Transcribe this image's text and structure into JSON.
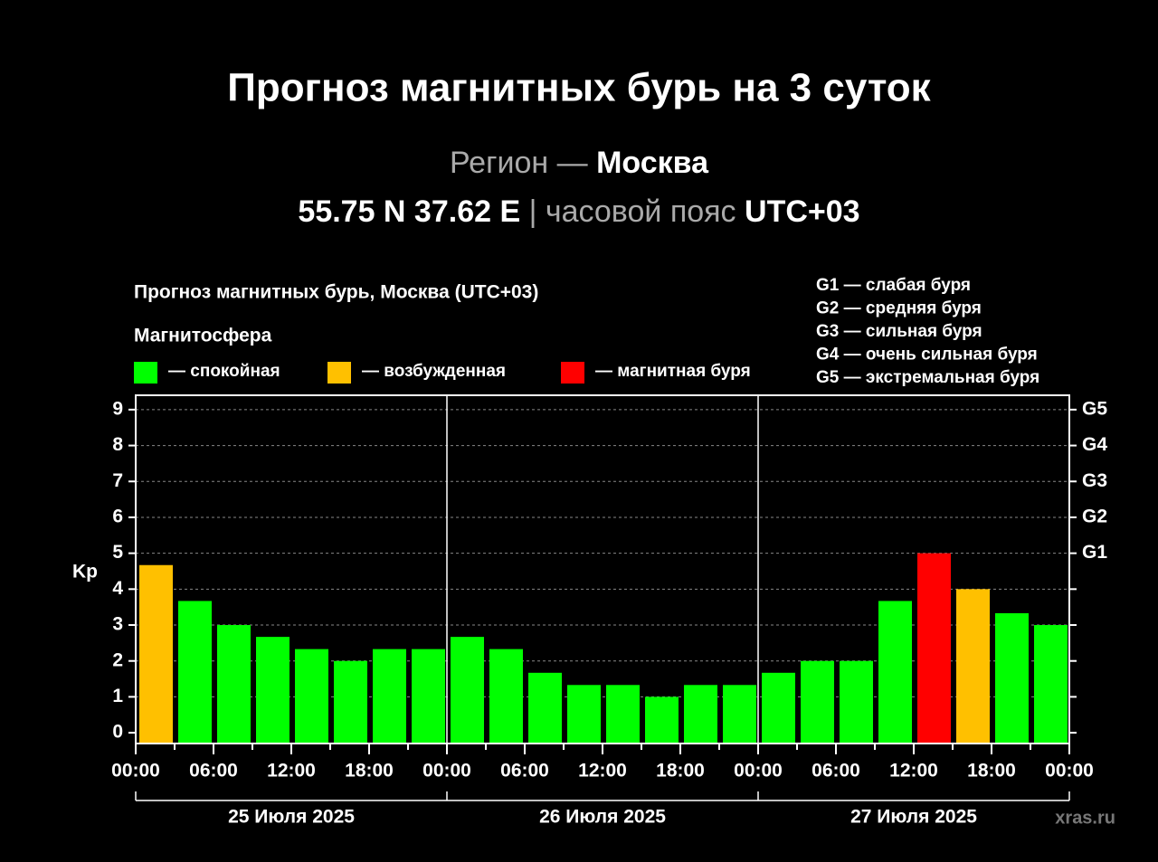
{
  "header": {
    "title": "Прогноз магнитных бурь на 3 суток",
    "region_label": "Регион —",
    "region": "Москва",
    "coords": "55.75 N 37.62 E",
    "tz_label": "| часовой пояс",
    "tz": "UTC+03"
  },
  "chart_data": {
    "type": "bar",
    "title": "Прогноз магнитных бурь, Москва (UTC+03)",
    "legend_title": "Магнитосфера",
    "legend": [
      {
        "name": "— спокойная",
        "color": "#00ff00"
      },
      {
        "name": "— возбужденная",
        "color": "#ffc000"
      },
      {
        "name": "— магнитная буря",
        "color": "#ff0000"
      }
    ],
    "g_legend": [
      "G1 — слабая буря",
      "G2 — средняя буря",
      "G3 — сильная буря",
      "G4 — очень сильная буря",
      "G5 — экстремальная буря"
    ],
    "y_label": "Kp",
    "categories": [
      null,
      null,
      null,
      null,
      null,
      null,
      null,
      null,
      null,
      null,
      null,
      null,
      null,
      null,
      null,
      null,
      null,
      null,
      null,
      null,
      null,
      null,
      null,
      null
    ],
    "values": [
      4.67,
      3.67,
      3,
      2.67,
      2.33,
      2,
      2.33,
      2.33,
      2.67,
      2.33,
      1.67,
      1.33,
      1.33,
      1,
      1.33,
      1.33,
      1.67,
      2,
      2,
      3.67,
      5,
      4,
      3.33,
      3
    ],
    "colors": [
      "#ffc000",
      "#00ff00",
      "#00ff00",
      "#00ff00",
      "#00ff00",
      "#00ff00",
      "#00ff00",
      "#00ff00",
      "#00ff00",
      "#00ff00",
      "#00ff00",
      "#00ff00",
      "#00ff00",
      "#00ff00",
      "#00ff00",
      "#00ff00",
      "#00ff00",
      "#00ff00",
      "#00ff00",
      "#00ff00",
      "#ff0000",
      "#ffc000",
      "#00ff00",
      "#00ff00"
    ],
    "ylim": [
      -0.3,
      9.4
    ],
    "yticks": [
      0,
      1,
      2,
      3,
      4,
      5,
      6,
      7,
      8,
      9
    ],
    "y2ticks": [
      {
        "value": 5,
        "label": "G1"
      },
      {
        "value": 6,
        "label": "G2"
      },
      {
        "value": 7,
        "label": "G3"
      },
      {
        "value": 8,
        "label": "G4"
      },
      {
        "value": 9,
        "label": "G5"
      }
    ],
    "xlim": [
      0,
      72
    ],
    "xticks": [
      {
        "value": 0,
        "label": "00:00"
      },
      {
        "value": 6,
        "label": "06:00"
      },
      {
        "value": 12,
        "label": "12:00"
      },
      {
        "value": 18,
        "label": "18:00"
      },
      {
        "value": 24,
        "label": "00:00"
      },
      {
        "value": 30,
        "label": "06:00"
      },
      {
        "value": 36,
        "label": "12:00"
      },
      {
        "value": 42,
        "label": "18:00"
      },
      {
        "value": 48,
        "label": "00:00"
      },
      {
        "value": 54,
        "label": "06:00"
      },
      {
        "value": 60,
        "label": "12:00"
      },
      {
        "value": 66,
        "label": "18:00"
      },
      {
        "value": 72,
        "label": "00:00"
      }
    ],
    "days": [
      "25 Июля 2025",
      "26 Июля 2025",
      "27 Июля 2025"
    ],
    "grid": true,
    "watermark": "xras.ru"
  }
}
